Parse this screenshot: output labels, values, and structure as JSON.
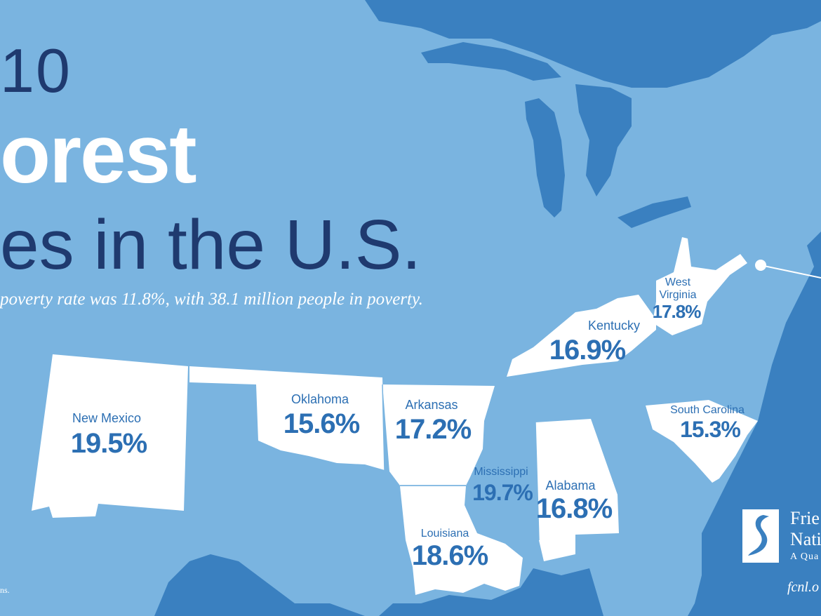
{
  "title": {
    "line1": "10",
    "line2": "orest",
    "line3": "es in the U.S."
  },
  "subtitle": "poverty rate was 11.8%, with 38.1 million people in poverty.",
  "states": [
    {
      "id": "new-mexico",
      "name": "New Mexico",
      "rate": "19.5%"
    },
    {
      "id": "oklahoma",
      "name": "Oklahoma",
      "rate": "15.6%"
    },
    {
      "id": "arkansas",
      "name": "Arkansas",
      "rate": "17.2%"
    },
    {
      "id": "mississippi",
      "name": "Mississippi",
      "rate": "19.7%"
    },
    {
      "id": "alabama",
      "name": "Alabama",
      "rate": "16.8%"
    },
    {
      "id": "louisiana",
      "name": "Louisiana",
      "rate": "18.6%"
    },
    {
      "id": "kentucky",
      "name": "Kentucky",
      "rate": "16.9%"
    },
    {
      "id": "west-virginia",
      "name": "West Virginia",
      "name_line1": "West",
      "name_line2": "Virginia",
      "rate": "17.8%"
    },
    {
      "id": "south-carolina",
      "name": "South Carolina",
      "rate": "15.3%"
    }
  ],
  "logo": {
    "line1": "Frie",
    "line2": "Nati",
    "line3": "A Qua"
  },
  "website": "fcnl.o",
  "source_note": "ns.",
  "colors": {
    "water": "#3a80c0",
    "land": "#7ab4e0",
    "highlight_state": "#ffffff",
    "state_text": "#2c6fb3",
    "title_dark": "#1f3a6f",
    "title_light": "#ffffff"
  },
  "icons": {
    "logo": "fcnl-logo-icon",
    "dc_marker": "location-dot-icon"
  }
}
